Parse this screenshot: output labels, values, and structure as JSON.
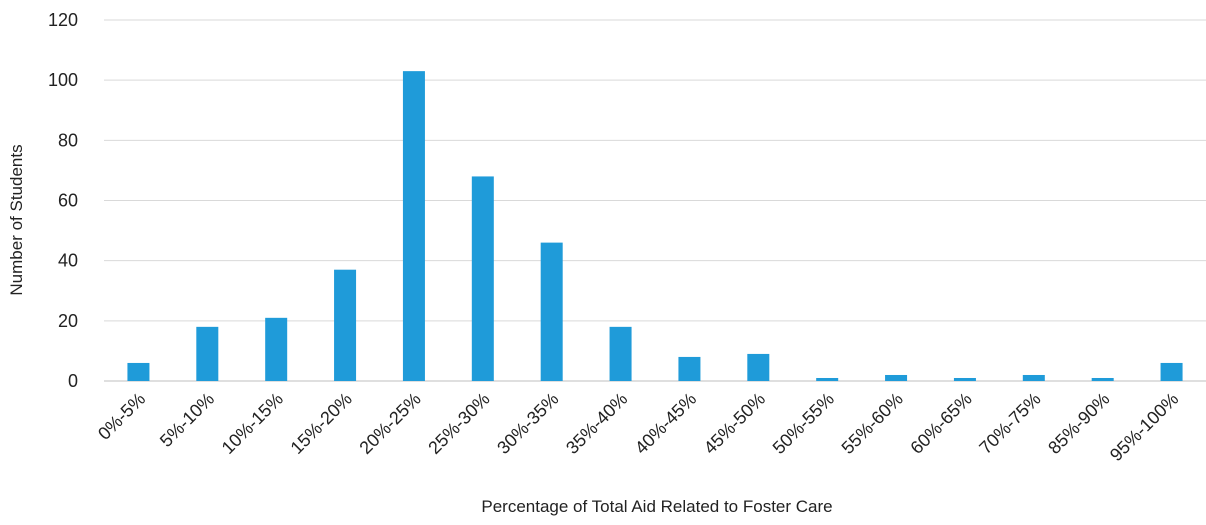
{
  "chart_data": {
    "type": "bar",
    "title": "",
    "xlabel": "Percentage of Total Aid Related to Foster Care",
    "ylabel": "Number of Students",
    "ylim": [
      0,
      120
    ],
    "yticks": [
      0,
      20,
      40,
      60,
      80,
      100,
      120
    ],
    "grid": true,
    "legend": "none",
    "bar_color": "#1f9bd9",
    "categories": [
      "0%-5%",
      "5%-10%",
      "10%-15%",
      "15%-20%",
      "20%-25%",
      "25%-30%",
      "30%-35%",
      "35%-40%",
      "40%-45%",
      "45%-50%",
      "50%-55%",
      "55%-60%",
      "60%-65%",
      "70%-75%",
      "85%-90%",
      "95%-100%"
    ],
    "values": [
      6,
      18,
      21,
      37,
      103,
      68,
      46,
      18,
      8,
      9,
      1,
      2,
      1,
      2,
      1,
      6
    ]
  }
}
